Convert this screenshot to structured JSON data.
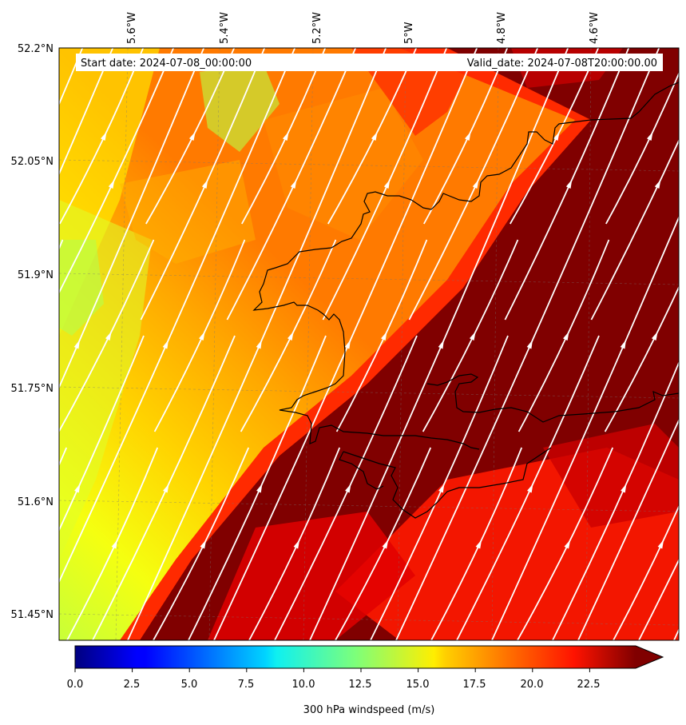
{
  "header": {
    "start_date": "Start date: 2024-07-08_00:00:00",
    "valid_date": "Valid_date: 2024-07-08T20:00:00.00"
  },
  "map": {
    "lon_ticks": [
      "5.6°W",
      "5.4°W",
      "5.2°W",
      "5°W",
      "4.8°W",
      "4.6°W"
    ],
    "lat_ticks": [
      "52.2°N",
      "52.05°N",
      "51.9°N",
      "51.75°N",
      "51.6°N",
      "51.45°N"
    ],
    "field": "300 hPa windspeed",
    "gridlines": true,
    "streamlines": true,
    "coastline_color": "#000000",
    "streamline_color": "#ffffff"
  },
  "colorbar": {
    "label": "300 hPa windspeed (m/s)",
    "ticks": [
      "0.0",
      "2.5",
      "5.0",
      "7.5",
      "10.0",
      "12.5",
      "15.0",
      "17.5",
      "20.0",
      "22.5"
    ],
    "vmin": 0,
    "vmax": 25,
    "extend": "max",
    "colormap": "jet"
  }
}
